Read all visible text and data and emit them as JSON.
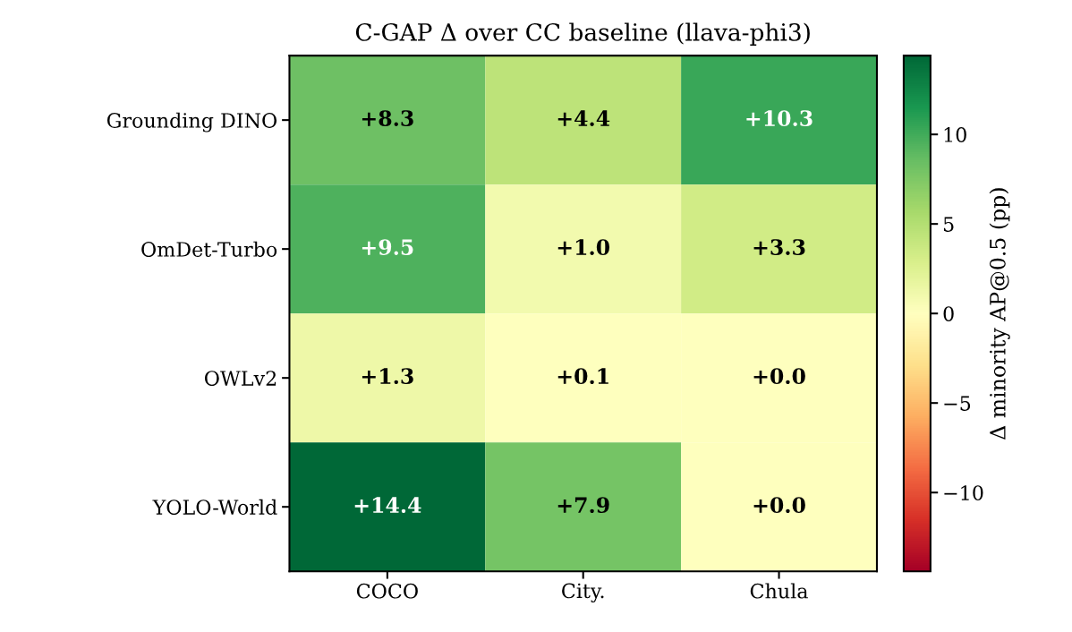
{
  "chart_data": {
    "type": "heatmap",
    "title": "C-GAP Δ over CC baseline (llava-phi3)",
    "clabel": "Δ minority AP@0.5 (pp)",
    "categories": [
      "COCO",
      "City.",
      "Chula"
    ],
    "y_categories": [
      "Grounding DINO",
      "OmDet-Turbo",
      "OWLv2",
      "YOLO-World"
    ],
    "cells": [
      [
        8.3,
        4.4,
        10.3
      ],
      [
        9.5,
        1.0,
        3.3
      ],
      [
        1.3,
        0.1,
        0.0
      ],
      [
        14.4,
        7.9,
        0.0
      ]
    ],
    "cell_labels": [
      [
        "+8.3",
        "+4.4",
        "+10.3"
      ],
      [
        "+9.5",
        "+1.0",
        "+3.3"
      ],
      [
        "+1.3",
        "+0.1",
        "+0.0"
      ],
      [
        "+14.4",
        "+7.9",
        "+0.0"
      ]
    ],
    "clim": [
      -14.4,
      14.4
    ],
    "cticks": [
      -10,
      -5,
      0,
      5,
      10
    ],
    "grid": false
  }
}
